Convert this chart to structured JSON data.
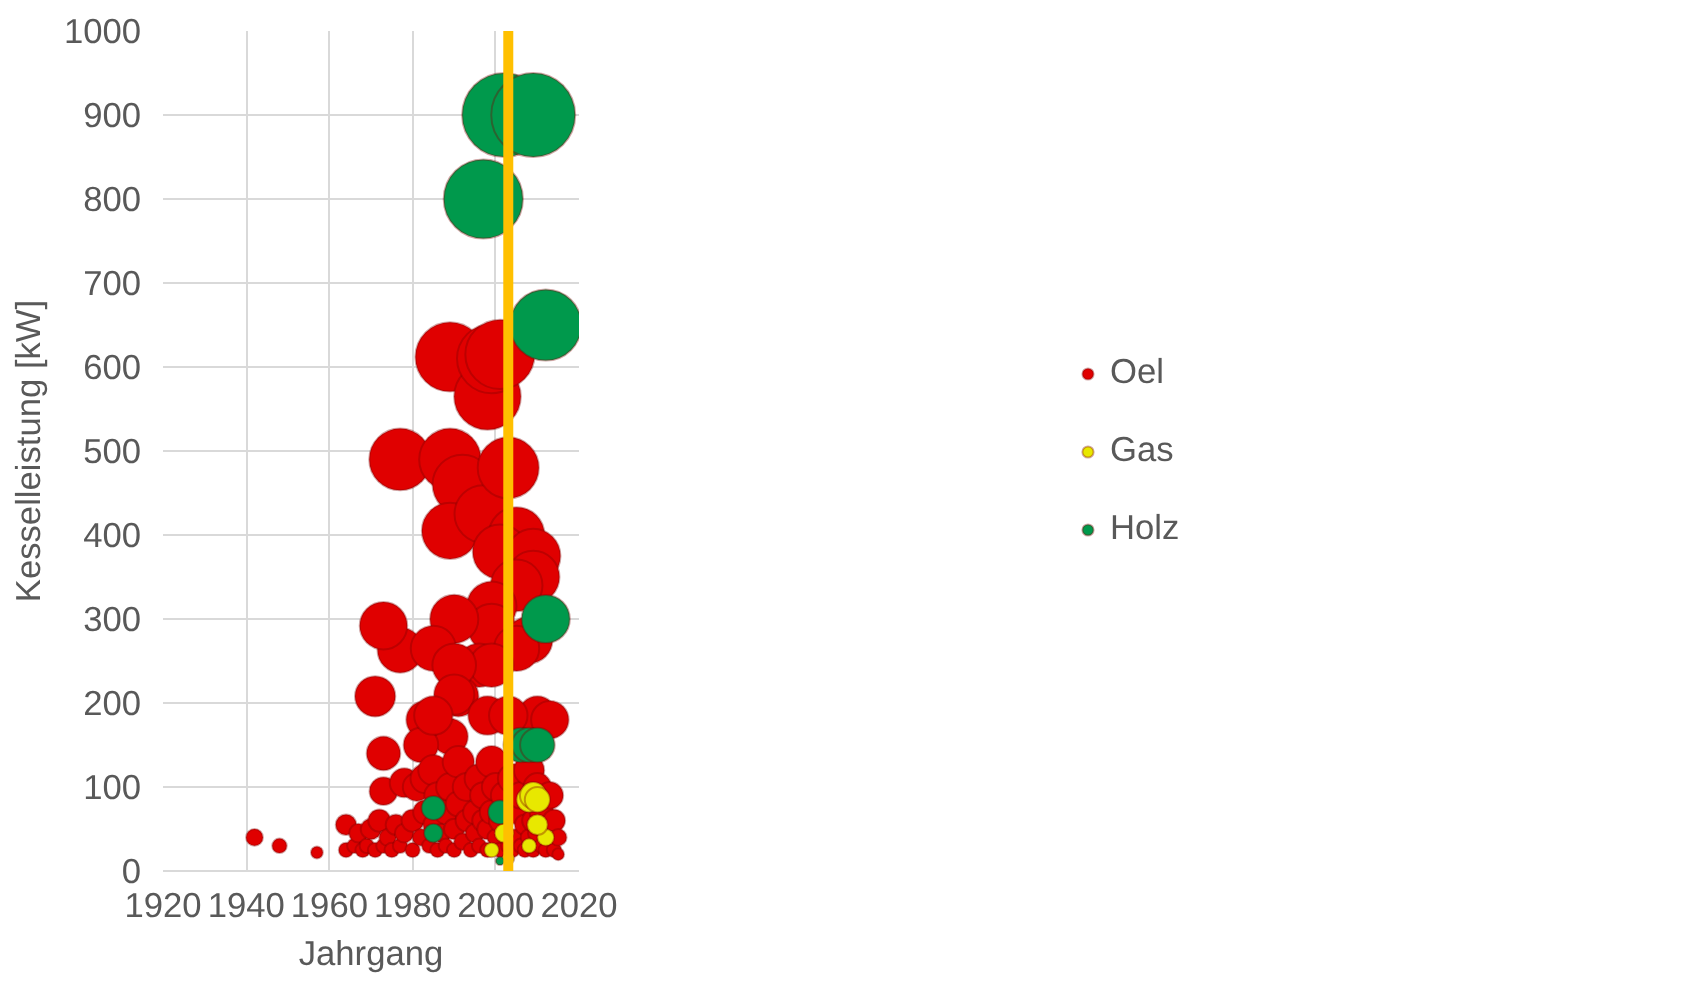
{
  "chart_data": {
    "type": "bubble",
    "xlabel": "Jahrgang",
    "ylabel": "Kesselleistung [kW]",
    "xlim": [
      1920,
      2020
    ],
    "xticks": [
      1920,
      1940,
      1960,
      1980,
      2000,
      2020
    ],
    "ylim": [
      0,
      1000
    ],
    "yticks": [
      0,
      100,
      200,
      300,
      400,
      500,
      600,
      700,
      800,
      900,
      1000
    ],
    "grid": true,
    "legend": "right",
    "ref_lines": [
      {
        "axis": "x",
        "value": 2003,
        "color": "#ffc000"
      }
    ],
    "series": [
      {
        "name": "Oel",
        "color": "#e00000",
        "x": [
          1942,
          1948,
          1957,
          1977,
          1977,
          1973,
          1971,
          1973,
          1973,
          1989,
          1989,
          1992,
          1989,
          1997,
          1998,
          1999,
          2001,
          2003,
          2005,
          2001,
          2009,
          2009,
          2005,
          1999,
          1999,
          1990,
          2008,
          2005,
          1996,
          1999,
          1985,
          1991,
          1990,
          1990,
          1989,
          1998,
          1983,
          1982,
          1985,
          2010,
          2013,
          2003,
          1964,
          1964,
          1966,
          1967,
          1968,
          1969,
          1970,
          1971,
          1972,
          1973,
          1974,
          1975,
          1976,
          1977,
          1978,
          1978,
          1980,
          1980,
          1981,
          1982,
          1983,
          1983,
          1984,
          1985,
          1985,
          1986,
          1986,
          1987,
          1988,
          1988,
          1989,
          1990,
          1990,
          1991,
          1991,
          1992,
          1993,
          1993,
          1994,
          1995,
          1995,
          1996,
          1996,
          1997,
          1997,
          1998,
          1998,
          1999,
          1999,
          2000,
          2000,
          2001,
          2001,
          2002,
          2003,
          2004,
          2004,
          2005,
          2005,
          2006,
          2006,
          2007,
          2007,
          2008,
          2008,
          2009,
          2009,
          2010,
          2010,
          2011,
          2011,
          2012,
          2013,
          2014,
          2014,
          2015,
          2015
        ],
        "values": [
          40,
          30,
          22,
          490,
          263,
          292,
          208,
          140,
          95,
          612,
          490,
          460,
          405,
          425,
          565,
          610,
          615,
          480,
          400,
          380,
          375,
          350,
          340,
          315,
          290,
          300,
          275,
          265,
          245,
          245,
          265,
          208,
          245,
          210,
          160,
          185,
          180,
          150,
          185,
          185,
          180,
          185,
          25,
          55,
          30,
          45,
          25,
          30,
          50,
          25,
          60,
          30,
          40,
          25,
          55,
          30,
          45,
          105,
          25,
          60,
          100,
          40,
          70,
          110,
          30,
          55,
          120,
          25,
          90,
          45,
          70,
          30,
          100,
          50,
          25,
          80,
          130,
          35,
          60,
          100,
          25,
          70,
          45,
          110,
          30,
          60,
          90,
          25,
          50,
          130,
          70,
          40,
          100,
          25,
          60,
          90,
          30,
          110,
          25,
          70,
          40,
          30,
          90,
          55,
          25,
          120,
          40,
          60,
          25,
          45,
          100,
          30,
          70,
          25,
          90,
          60,
          25,
          40,
          20
        ],
        "sizes": [
          0.04,
          0.03,
          0.02,
          0.54,
          0.29,
          0.32,
          0.23,
          0.16,
          0.11,
          0.68,
          0.54,
          0.51,
          0.45,
          0.47,
          0.63,
          0.68,
          0.68,
          0.53,
          0.44,
          0.42,
          0.42,
          0.39,
          0.38,
          0.35,
          0.32,
          0.33,
          0.31,
          0.29,
          0.27,
          0.27,
          0.29,
          0.23,
          0.27,
          0.23,
          0.18,
          0.21,
          0.2,
          0.17,
          0.21,
          0.21,
          0.2,
          0.21,
          0.03,
          0.06,
          0.03,
          0.05,
          0.03,
          0.03,
          0.06,
          0.03,
          0.07,
          0.03,
          0.04,
          0.03,
          0.06,
          0.03,
          0.05,
          0.12,
          0.03,
          0.07,
          0.11,
          0.04,
          0.08,
          0.12,
          0.03,
          0.06,
          0.13,
          0.03,
          0.1,
          0.05,
          0.08,
          0.03,
          0.11,
          0.06,
          0.03,
          0.09,
          0.14,
          0.04,
          0.07,
          0.11,
          0.03,
          0.08,
          0.05,
          0.12,
          0.03,
          0.07,
          0.1,
          0.03,
          0.06,
          0.14,
          0.08,
          0.04,
          0.11,
          0.03,
          0.07,
          0.1,
          0.03,
          0.12,
          0.03,
          0.08,
          0.04,
          0.03,
          0.1,
          0.06,
          0.03,
          0.13,
          0.04,
          0.07,
          0.03,
          0.05,
          0.11,
          0.03,
          0.08,
          0.03,
          0.1,
          0.07,
          0.03,
          0.04,
          0.02
        ]
      },
      {
        "name": "Gas",
        "color": "#e8e800",
        "x": [
          2008,
          2009,
          2010,
          2002,
          1999,
          2008,
          2012,
          2003,
          2010
        ],
        "values": [
          85,
          90,
          85,
          45,
          25,
          30,
          40,
          15,
          55
        ],
        "sizes": [
          0.09,
          0.1,
          0.09,
          0.05,
          0.03,
          0.03,
          0.04,
          0.02,
          0.06
        ]
      },
      {
        "name": "Holz",
        "color": "#00994c",
        "x": [
          2002,
          2009,
          1997,
          2012,
          2012,
          2006,
          2008,
          2010,
          1985,
          1985,
          2001,
          2001
        ],
        "values": [
          900,
          900,
          800,
          650,
          300,
          150,
          150,
          150,
          75,
          45,
          70,
          12
        ],
        "sizes": [
          1,
          1,
          0.89,
          0.72,
          0.33,
          0.17,
          0.17,
          0.17,
          0.08,
          0.05,
          0.08,
          0.01
        ]
      }
    ]
  }
}
